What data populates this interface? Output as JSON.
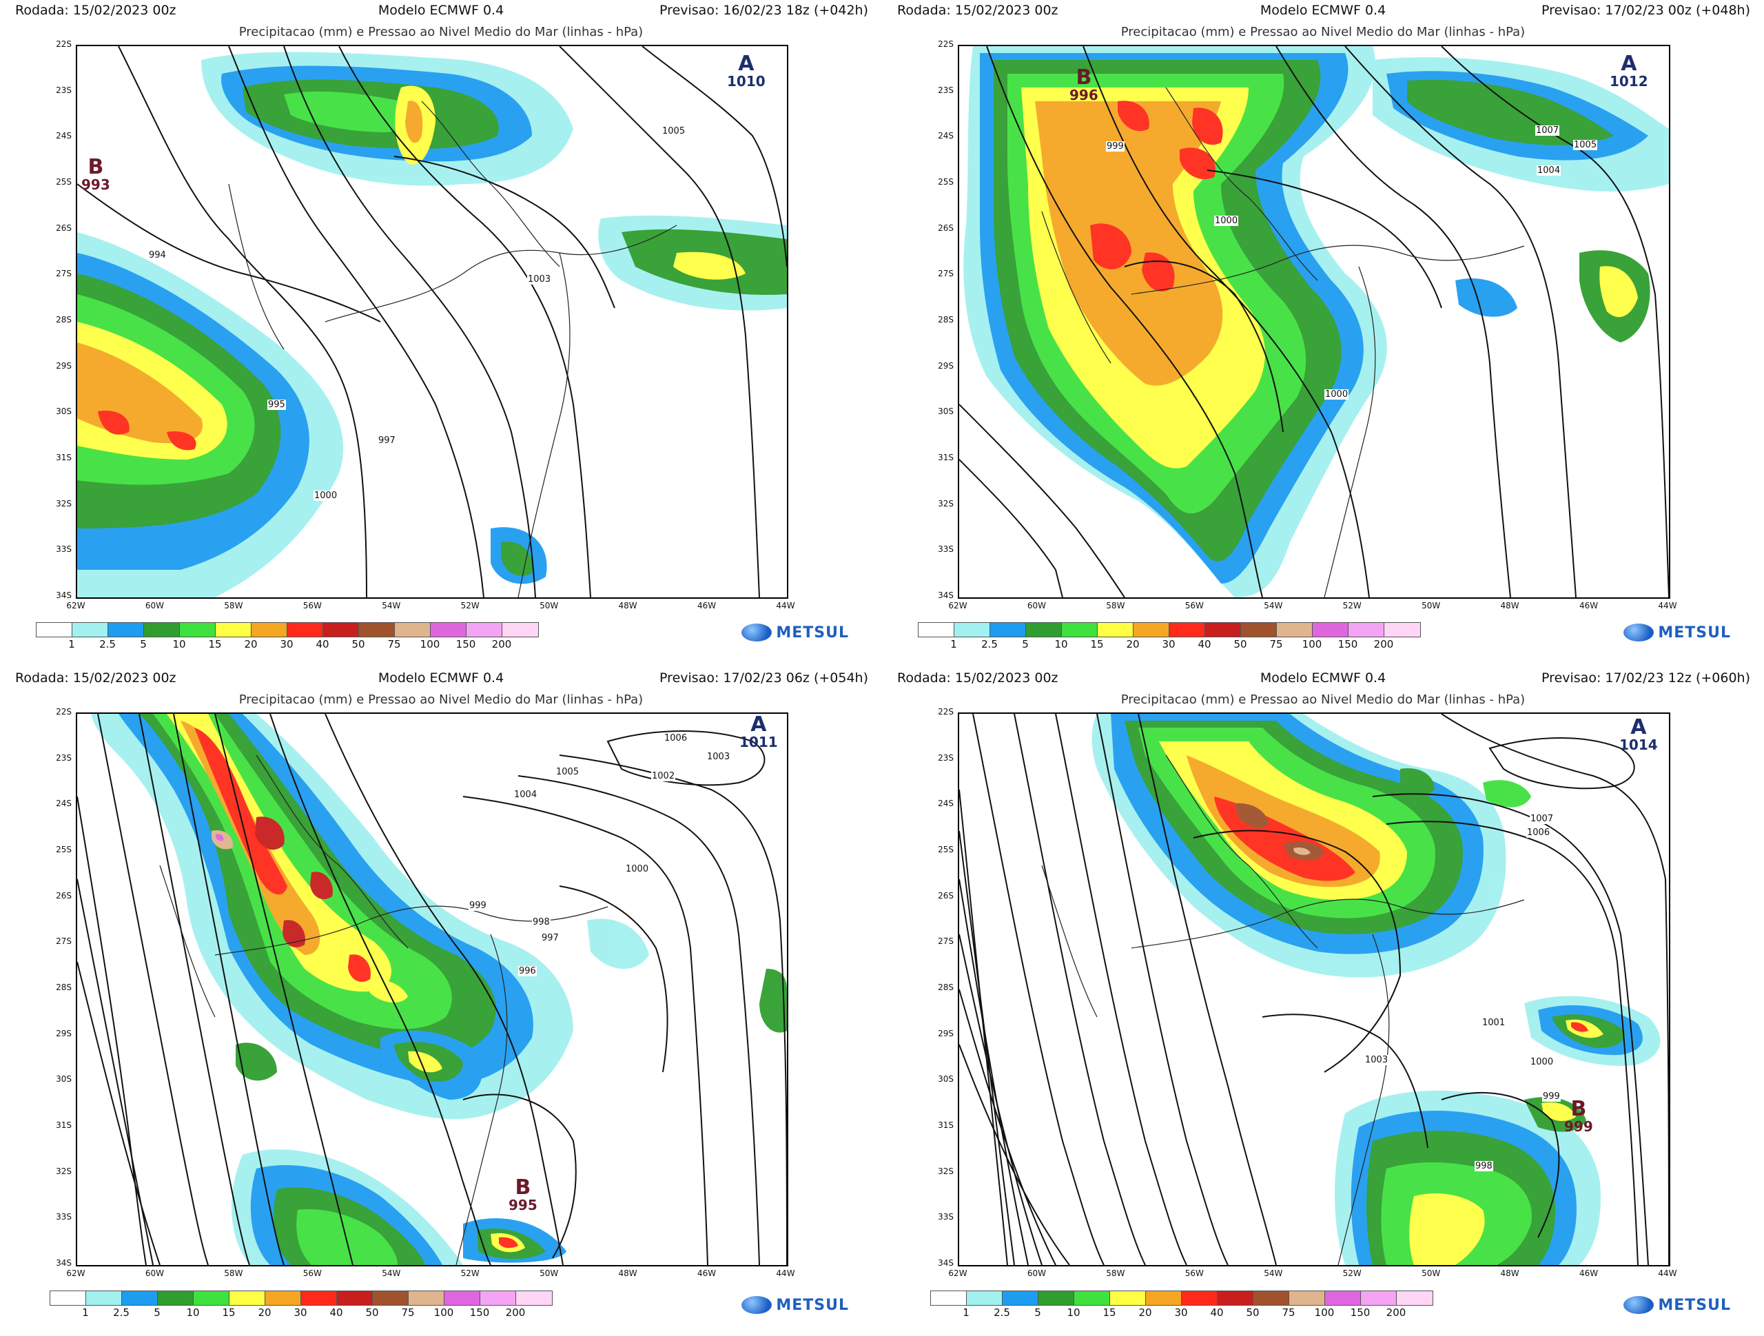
{
  "colors": {
    "legend": [
      "#ffffff",
      "#a3f0f0",
      "#1e9cf0",
      "#2f9e2f",
      "#3fe13f",
      "#ffff44",
      "#f5a623",
      "#ff2a1a",
      "#c81e1e",
      "#a0522d",
      "#e0b48c",
      "#e066e0",
      "#f4a4f4",
      "#ffd6f5"
    ],
    "high": "#1d2e6e",
    "low": "#6b1a2a",
    "brand": "#1f5fbf"
  },
  "legend_labels": [
    "1",
    "2.5",
    "5",
    "10",
    "15",
    "20",
    "30",
    "40",
    "50",
    "75",
    "100",
    "150",
    "200"
  ],
  "lat_labels": [
    "22S",
    "23S",
    "24S",
    "25S",
    "26S",
    "27S",
    "28S",
    "29S",
    "30S",
    "31S",
    "32S",
    "33S",
    "34S"
  ],
  "lon_labels": [
    "62W",
    "60W",
    "58W",
    "56W",
    "54W",
    "52W",
    "50W",
    "48W",
    "46W",
    "44W"
  ],
  "logo_text": "METSUL",
  "panels": [
    {
      "run": "Rodada: 15/02/2023 00z",
      "model": "Modelo ECMWF 0.4",
      "forecast": "Previsao: 16/02/23 18z (+042h)",
      "subtitle": "Precipitacao (mm) e Pressao ao Nivel Medio do Mar (linhas - hPa)",
      "centers": [
        {
          "letter": "A",
          "value": "1010",
          "kind": "high"
        },
        {
          "letter": "B",
          "value": "993",
          "kind": "low"
        }
      ],
      "isobars": [
        "1005",
        "994",
        "1003",
        "995",
        "997",
        "1000"
      ]
    },
    {
      "run": "Rodada: 15/02/2023 00z",
      "model": "Modelo ECMWF 0.4",
      "forecast": "Previsao: 17/02/23 00z (+048h)",
      "subtitle": "Precipitacao (mm) e Pressao ao Nivel Medio do Mar (linhas - hPa)",
      "centers": [
        {
          "letter": "A",
          "value": "1012",
          "kind": "high"
        },
        {
          "letter": "B",
          "value": "996",
          "kind": "low"
        }
      ],
      "isobars": [
        "999",
        "1007",
        "1005",
        "1004",
        "1000",
        "1000"
      ]
    },
    {
      "run": "Rodada: 15/02/2023 00z",
      "model": "Modelo ECMWF 0.4",
      "forecast": "Previsao: 17/02/23 06z (+054h)",
      "subtitle": "Precipitacao (mm) e Pressao ao Nivel Medio do Mar (linhas - hPa)",
      "centers": [
        {
          "letter": "A",
          "value": "1011",
          "kind": "high"
        },
        {
          "letter": "B",
          "value": "995",
          "kind": "low"
        }
      ],
      "isobars": [
        "1006",
        "1003",
        "1005",
        "1002",
        "1004",
        "1000",
        "999",
        "998",
        "997",
        "996"
      ]
    },
    {
      "run": "Rodada: 15/02/2023 00z",
      "model": "Modelo ECMWF 0.4",
      "forecast": "Previsao: 17/02/23 12z (+060h)",
      "subtitle": "Precipitacao (mm) e Pressao ao Nivel Medio do Mar (linhas - hPa)",
      "centers": [
        {
          "letter": "A",
          "value": "1014",
          "kind": "high"
        },
        {
          "letter": "B",
          "value": "999",
          "kind": "low"
        }
      ],
      "isobars": [
        "1007",
        "1006",
        "1001",
        "1003",
        "1000",
        "999",
        "998"
      ]
    }
  ]
}
